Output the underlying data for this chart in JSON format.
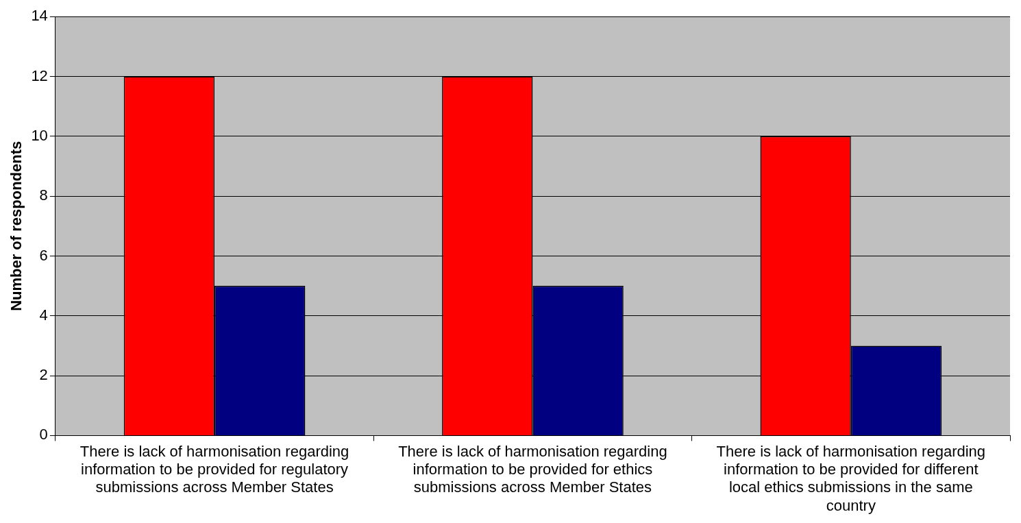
{
  "chart_data": {
    "type": "bar",
    "ylabel": "Number of respondents",
    "categories": [
      "There is lack of harmonisation regarding information to be provided for regulatory submissions across Member States",
      "There is lack of harmonisation regarding information to be provided for ethics submissions across Member States",
      "There is lack of harmonisation regarding information to be provided for different local ethics submissions in the same country"
    ],
    "series": [
      {
        "color": "#ff0000",
        "values": [
          12,
          12,
          10
        ]
      },
      {
        "color": "#000080",
        "values": [
          5,
          5,
          3
        ]
      }
    ],
    "ylim": [
      0,
      14
    ],
    "yticks": [
      0,
      2,
      4,
      6,
      8,
      10,
      12,
      14
    ],
    "grid": "y",
    "legend": false
  }
}
